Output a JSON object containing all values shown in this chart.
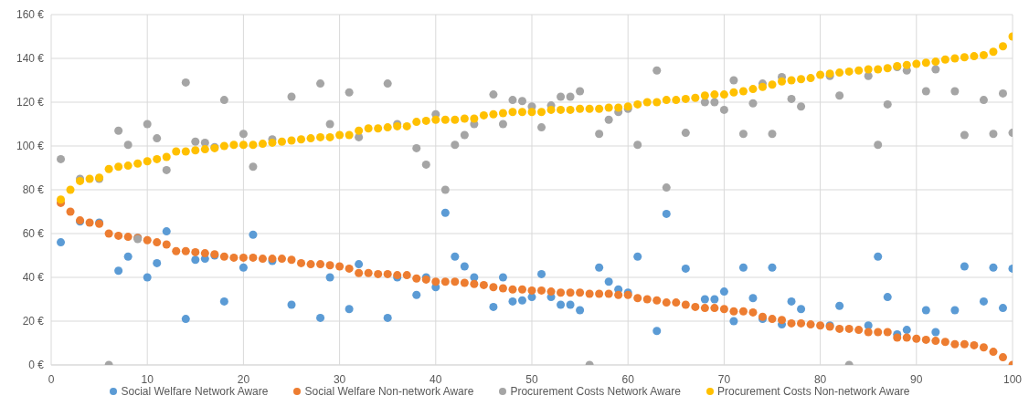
{
  "chart_data": {
    "type": "scatter",
    "x": [
      1,
      2,
      3,
      4,
      5,
      6,
      7,
      8,
      9,
      10,
      11,
      12,
      13,
      14,
      15,
      16,
      17,
      18,
      19,
      20,
      21,
      22,
      23,
      24,
      25,
      26,
      27,
      28,
      29,
      30,
      31,
      32,
      33,
      34,
      35,
      36,
      37,
      38,
      39,
      40,
      41,
      42,
      43,
      44,
      45,
      46,
      47,
      48,
      49,
      50,
      51,
      52,
      53,
      54,
      55,
      56,
      57,
      58,
      59,
      60,
      61,
      62,
      63,
      64,
      65,
      66,
      67,
      68,
      69,
      70,
      71,
      72,
      73,
      74,
      75,
      76,
      77,
      78,
      79,
      80,
      81,
      82,
      83,
      84,
      85,
      86,
      87,
      88,
      89,
      90,
      91,
      92,
      93,
      94,
      95,
      96,
      97,
      98,
      99,
      100
    ],
    "series": [
      {
        "name": "Social Welfare Network Aware",
        "color": "#5b9bd5",
        "values": [
          56,
          null,
          65.5,
          null,
          65,
          null,
          43,
          49.5,
          58,
          40,
          46.5,
          61,
          null,
          21,
          48,
          48.5,
          50,
          29,
          null,
          44.5,
          59.5,
          null,
          47.5,
          null,
          27.5,
          null,
          null,
          21.5,
          40,
          null,
          25.5,
          46,
          null,
          null,
          21.5,
          40,
          null,
          32,
          40,
          35.5,
          69.5,
          49.5,
          45,
          40,
          null,
          26.5,
          40,
          29,
          29.5,
          31,
          41.5,
          31,
          27.5,
          27.5,
          25,
          null,
          44.5,
          38,
          34.5,
          33,
          49.5,
          null,
          15.5,
          69,
          null,
          44,
          null,
          30,
          30,
          33.5,
          20,
          44.5,
          30.5,
          21,
          44.5,
          18.5,
          29,
          25.5,
          null,
          null,
          18,
          27,
          null,
          null,
          18,
          49.5,
          31,
          14,
          16,
          null,
          25,
          15,
          null,
          25,
          45,
          null,
          29,
          44.5,
          26,
          44
        ]
      },
      {
        "name": "Social Welfare Non-network Aware",
        "color": "#ed7d31",
        "values": [
          74,
          70,
          66,
          65,
          64.5,
          60,
          59,
          58.5,
          58,
          57,
          56,
          55,
          52,
          52,
          51.5,
          51,
          50.5,
          49.5,
          49,
          49,
          49,
          48.5,
          48.5,
          48.5,
          48,
          46.5,
          46,
          46,
          45.5,
          45,
          44,
          42,
          42,
          41.5,
          41.5,
          41,
          41,
          39.5,
          39,
          38,
          38,
          38,
          37.5,
          37,
          36.5,
          35.5,
          35,
          34.5,
          34.5,
          34,
          34,
          33.5,
          33,
          33,
          33,
          32.5,
          32.5,
          32.5,
          32,
          32,
          30.5,
          30,
          29.5,
          28.5,
          28.5,
          27.5,
          26.5,
          26,
          26,
          25.5,
          24.5,
          24.5,
          24,
          22,
          21,
          20.5,
          19,
          19,
          18.5,
          18,
          17.5,
          16.5,
          16.5,
          16,
          15,
          15,
          15,
          12.5,
          12.5,
          12,
          11.5,
          11,
          10.5,
          9.5,
          9.5,
          9,
          8,
          6,
          3.5,
          0
        ]
      },
      {
        "name": "Procurement Costs Network Aware",
        "color": "#a5a5a5",
        "values": [
          94,
          null,
          85,
          null,
          85,
          0,
          107,
          100.5,
          57.5,
          110,
          103.5,
          89,
          null,
          129,
          102,
          101.5,
          99.5,
          121,
          null,
          105.5,
          90.5,
          null,
          103,
          null,
          122.5,
          null,
          null,
          128.5,
          110,
          null,
          124.5,
          104,
          null,
          null,
          128.5,
          110,
          null,
          99,
          91.5,
          114.5,
          80,
          100.5,
          105,
          110,
          null,
          123.5,
          110,
          121,
          120.5,
          118,
          108.5,
          118.5,
          122.5,
          122.5,
          125,
          0,
          105.5,
          112,
          115.5,
          117,
          100.5,
          null,
          134.5,
          81,
          null,
          106,
          null,
          120,
          120,
          116.5,
          130,
          105.5,
          119.5,
          128.5,
          105.5,
          131.5,
          121.5,
          118,
          null,
          null,
          132,
          123,
          0,
          null,
          132,
          100.5,
          119,
          136,
          134.5,
          null,
          125,
          135,
          null,
          125,
          105,
          null,
          121,
          105.5,
          124,
          106
        ]
      },
      {
        "name": "Procurement Costs Non-network Aware",
        "color": "#ffc000",
        "values": [
          75.5,
          80,
          84,
          85,
          85.5,
          89.5,
          90.5,
          91,
          92,
          93,
          94,
          95,
          97.5,
          97.5,
          98,
          98.5,
          99,
          100,
          100.5,
          100.5,
          100.5,
          101,
          101.5,
          102,
          102.5,
          103,
          103.5,
          104,
          104,
          105,
          105,
          107,
          108,
          108,
          108.5,
          109,
          109,
          111,
          111.5,
          112,
          112,
          112,
          112.5,
          112.5,
          114,
          114.5,
          115,
          115.5,
          115.5,
          115.5,
          115.5,
          116.5,
          116.5,
          116.5,
          117,
          117,
          117,
          117.5,
          117.5,
          118,
          119,
          120,
          120,
          121,
          121,
          121.5,
          122,
          123,
          123.5,
          123.5,
          124.5,
          125,
          126,
          127,
          128,
          129.5,
          130,
          130.5,
          131,
          132.5,
          133,
          133.5,
          134,
          134.5,
          135,
          135,
          135.5,
          136.5,
          137,
          137.5,
          138,
          138.5,
          139.5,
          140,
          140.5,
          141,
          141.5,
          143,
          145.5,
          150
        ]
      }
    ],
    "xlim": [
      0,
      100
    ],
    "xticks": [
      0,
      10,
      20,
      30,
      40,
      50,
      60,
      70,
      80,
      90,
      100
    ],
    "ylim": [
      0,
      160
    ],
    "yticks": [
      {
        "value": 0,
        "label": "0 €"
      },
      {
        "value": 20,
        "label": "20 €"
      },
      {
        "value": 40,
        "label": "40 €"
      },
      {
        "value": 60,
        "label": "60 €"
      },
      {
        "value": 80,
        "label": "80 €"
      },
      {
        "value": 100,
        "label": "100 €"
      },
      {
        "value": 120,
        "label": "120 €"
      },
      {
        "value": 140,
        "label": "140 €"
      },
      {
        "value": 160,
        "label": "160 €"
      }
    ],
    "grid": true,
    "legend": "bottom",
    "marker": "circle"
  }
}
